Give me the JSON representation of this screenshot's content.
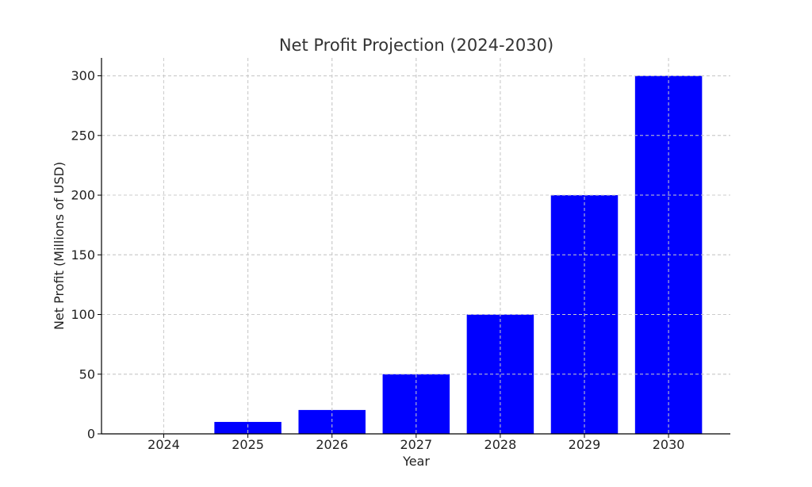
{
  "chart_data": {
    "type": "bar",
    "title": "Net Profit Projection (2024-2030)",
    "xlabel": "Year",
    "ylabel": "Net Profit (Millions of USD)",
    "categories": [
      "2024",
      "2025",
      "2026",
      "2027",
      "2028",
      "2029",
      "2030"
    ],
    "values": [
      0,
      10,
      20,
      50,
      100,
      200,
      300
    ],
    "ylim": [
      0,
      315
    ],
    "yticks": [
      0,
      50,
      100,
      150,
      200,
      250,
      300
    ],
    "grid": true,
    "bar_color": "#0000ff"
  }
}
